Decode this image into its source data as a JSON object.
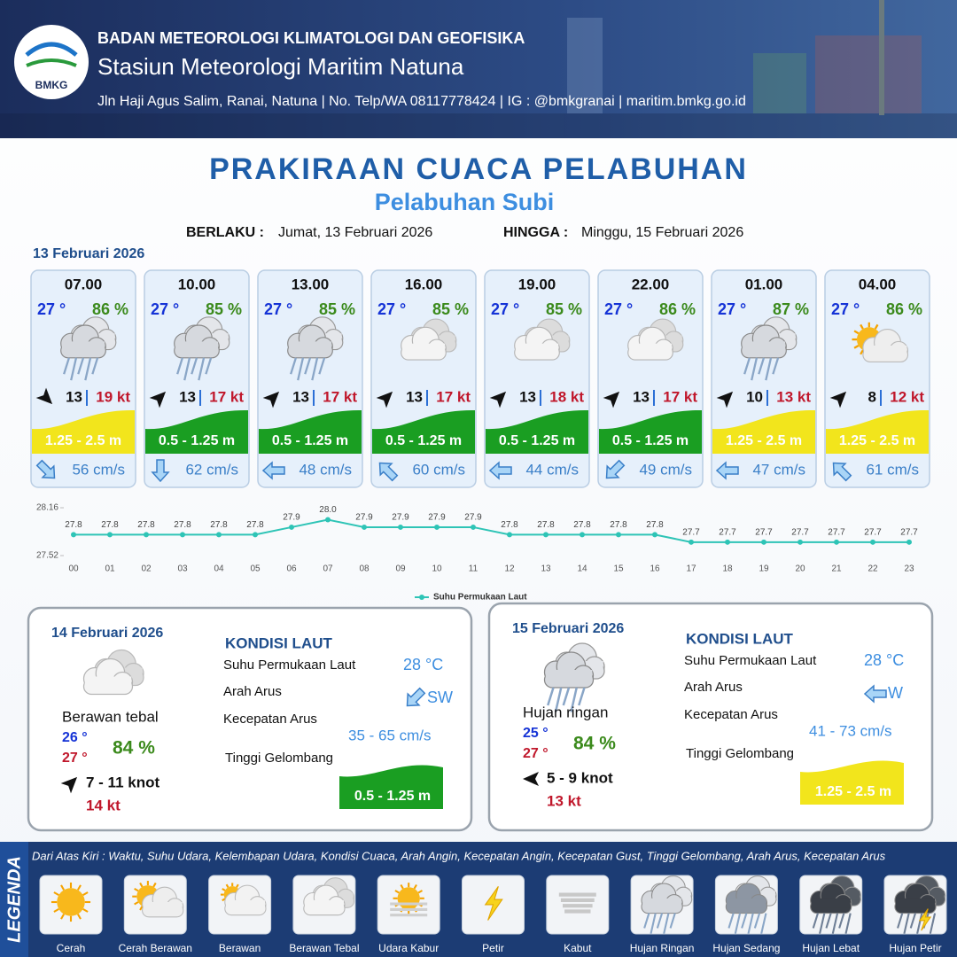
{
  "header": {
    "logo": "BMKG",
    "org": "BADAN METEOROLOGI KLIMATOLOGI DAN GEOFISIKA",
    "station": "Stasiun Meteorologi Maritim Natuna",
    "address": "Jln Haji Agus Salim, Ranai, Natuna  | No. Telp/WA 08117778424 | IG : @bmkgranai | maritim.bmkg.go.id"
  },
  "title": "PRAKIRAAN CUACA PELABUHAN",
  "subtitle": "Pelabuhan Subi",
  "validity": {
    "from_label": "BERLAKU :",
    "from": "Jumat, 13 Februari 2026",
    "to_label": "HINGGA :",
    "to": "Minggu, 15 Februari 2026"
  },
  "day1_date": "13 Februari 2026",
  "cards": [
    {
      "time": "07.00",
      "temp": "27 °",
      "humidity": "86 %",
      "icon": "hujan-ringan",
      "wind_dir": "SE",
      "wind": "13",
      "gust": "19 kt",
      "wave": "1.25 - 2.5 m",
      "wave_color": "#f2e51c",
      "current_dir": "SE",
      "current": "56 cm/s"
    },
    {
      "time": "10.00",
      "temp": "27 °",
      "humidity": "85 %",
      "icon": "hujan-ringan",
      "wind_dir": "NE",
      "wind": "13",
      "gust": "17 kt",
      "wave": "0.5 - 1.25 m",
      "wave_color": "#1a9e22",
      "current_dir": "S",
      "current": "62 cm/s"
    },
    {
      "time": "13.00",
      "temp": "27 °",
      "humidity": "85 %",
      "icon": "hujan-ringan",
      "wind_dir": "NE",
      "wind": "13",
      "gust": "17 kt",
      "wave": "0.5 - 1.25 m",
      "wave_color": "#1a9e22",
      "current_dir": "W",
      "current": "48 cm/s"
    },
    {
      "time": "16.00",
      "temp": "27 °",
      "humidity": "85 %",
      "icon": "berawan-tebal",
      "wind_dir": "NE",
      "wind": "13",
      "gust": "17 kt",
      "wave": "0.5 - 1.25 m",
      "wave_color": "#1a9e22",
      "current_dir": "NW",
      "current": "60 cm/s"
    },
    {
      "time": "19.00",
      "temp": "27 °",
      "humidity": "85 %",
      "icon": "berawan-tebal",
      "wind_dir": "NE",
      "wind": "13",
      "gust": "18 kt",
      "wave": "0.5 - 1.25 m",
      "wave_color": "#1a9e22",
      "current_dir": "W",
      "current": "44 cm/s"
    },
    {
      "time": "22.00",
      "temp": "27 °",
      "humidity": "86 %",
      "icon": "berawan-tebal",
      "wind_dir": "NE",
      "wind": "13",
      "gust": "17 kt",
      "wave": "0.5 - 1.25 m",
      "wave_color": "#1a9e22",
      "current_dir": "SW",
      "current": "49 cm/s"
    },
    {
      "time": "01.00",
      "temp": "27 °",
      "humidity": "87 %",
      "icon": "hujan-ringan",
      "wind_dir": "NE",
      "wind": "10",
      "gust": "13 kt",
      "wave": "1.25 - 2.5 m",
      "wave_color": "#f2e51c",
      "current_dir": "W",
      "current": "47 cm/s"
    },
    {
      "time": "04.00",
      "temp": "27 °",
      "humidity": "86 %",
      "icon": "cerah-berawan",
      "wind_dir": "NE",
      "wind": "8",
      "gust": "12 kt",
      "wave": "1.25 - 2.5 m",
      "wave_color": "#f2e51c",
      "current_dir": "NW",
      "current": "61 cm/s"
    }
  ],
  "chart_data": {
    "type": "line",
    "categories": [
      "00",
      "01",
      "02",
      "03",
      "04",
      "05",
      "06",
      "07",
      "08",
      "09",
      "10",
      "11",
      "12",
      "13",
      "14",
      "15",
      "16",
      "17",
      "18",
      "19",
      "20",
      "21",
      "22",
      "23"
    ],
    "series": [
      {
        "name": "Suhu Permukaan Laut",
        "color": "#2ec4b6",
        "values": [
          27.8,
          27.8,
          27.8,
          27.8,
          27.8,
          27.8,
          27.9,
          28.0,
          27.9,
          27.9,
          27.9,
          27.9,
          27.8,
          27.8,
          27.8,
          27.8,
          27.8,
          27.7,
          27.7,
          27.7,
          27.7,
          27.7,
          27.7,
          27.7
        ],
        "value_labels": [
          "27.8",
          "27.8",
          "27.8",
          "27.8",
          "27.8",
          "27.8",
          "27.9",
          "28.0",
          "27.9",
          "27.9",
          "27.9",
          "27.9",
          "27.8",
          "27.8",
          "27.8",
          "27.8",
          "27.8",
          "27.7",
          "27.7",
          "27.7",
          "27.7",
          "27.7",
          "27.7",
          "27.7"
        ]
      }
    ],
    "ylim": [
      27.52,
      28.16
    ],
    "yticks": [
      27.52,
      28.16
    ]
  },
  "day_panels": [
    {
      "date": "14 Februari 2026",
      "icon": "berawan-tebal",
      "condition": "Berawan tebal",
      "temp_min": "26 °",
      "temp_max": "27 °",
      "humidity": "84 %",
      "wind_dir": "NE",
      "wind": "7  - 11 knot",
      "gust": "14 kt",
      "sea_title": "KONDISI LAUT",
      "sst_label": "Suhu Permukaan Laut",
      "sst": "28 °C",
      "current_dir_label": "Arah Arus",
      "current_dir": "SW",
      "current_label": "Kecepatan Arus",
      "current": "35 - 65 cm/s",
      "wave_label": "Tinggi Gelombang",
      "wave": "0.5 - 1.25 m",
      "wave_color": "#1a9e22"
    },
    {
      "date": "15 Februari 2026",
      "icon": "hujan-ringan",
      "condition": "Hujan ringan",
      "temp_min": "25 °",
      "temp_max": "27 °",
      "humidity": "84 %",
      "wind_dir": "W",
      "wind": "5  - 9 knot",
      "gust": "13 kt",
      "sea_title": "KONDISI LAUT",
      "sst_label": "Suhu Permukaan Laut",
      "sst": "28 °C",
      "current_dir_label": "Arah Arus",
      "current_dir": "W",
      "current_label": "Kecepatan Arus",
      "current": "41 - 73 cm/s",
      "wave_label": "Tinggi Gelombang",
      "wave": "1.25 - 2.5 m",
      "wave_color": "#f2e51c"
    }
  ],
  "legend": {
    "title": "LEGENDA",
    "description": "Dari Atas Kiri : Waktu, Suhu Udara, Kelembapan Udara, Kondisi Cuaca, Arah Angin, Kecepatan Angin, Kecepatan Gust, Tinggi Gelombang, Arah Arus, Kecepatan Arus",
    "items": [
      {
        "name": "Cerah",
        "icon": "cerah"
      },
      {
        "name": "Cerah Berawan",
        "icon": "cerah-berawan"
      },
      {
        "name": "Berawan",
        "icon": "berawan"
      },
      {
        "name": "Berawan Tebal",
        "icon": "berawan-tebal"
      },
      {
        "name": "Udara Kabur",
        "icon": "udara-kabur"
      },
      {
        "name": "Petir",
        "icon": "petir"
      },
      {
        "name": "Kabut",
        "icon": "kabut"
      },
      {
        "name": "Hujan Ringan",
        "icon": "hujan-ringan"
      },
      {
        "name": "Hujan Sedang",
        "icon": "hujan-sedang"
      },
      {
        "name": "Hujan Lebat",
        "icon": "hujan-lebat"
      },
      {
        "name": "Hujan Petir",
        "icon": "hujan-petir"
      }
    ]
  }
}
